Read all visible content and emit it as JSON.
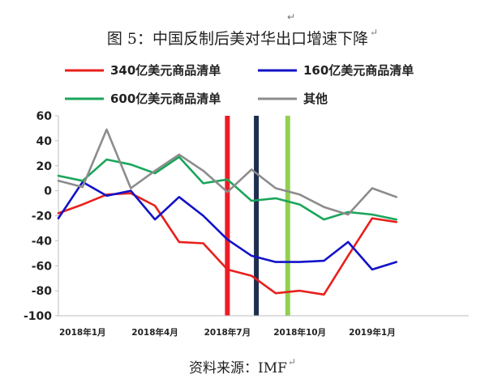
{
  "title": "图 5：中国反制后美对华出口增速下降",
  "title_mark": "↵",
  "top_mark": "↵",
  "source": "资料来源：IMF",
  "source_mark": "↵",
  "chart_data": {
    "type": "line",
    "ylim": [
      -100,
      60
    ],
    "yticks": [
      60,
      40,
      20,
      0,
      -20,
      -40,
      -60,
      -80,
      -100
    ],
    "x_range": [
      0,
      17
    ],
    "x_tick_labels": [
      {
        "label": "2018年1月",
        "x": 1
      },
      {
        "label": "2018年4月",
        "x": 4
      },
      {
        "label": "2018年7月",
        "x": 7
      },
      {
        "label": "2018年10月",
        "x": 10
      },
      {
        "label": "2019年1月",
        "x": 13
      }
    ],
    "grid": false,
    "legend_position": "top",
    "vertical_markers": [
      {
        "x": 7,
        "color": "#ee1c25"
      },
      {
        "x": 8.2,
        "color": "#1f2d4f"
      },
      {
        "x": 9.5,
        "color": "#92d050"
      }
    ],
    "series": [
      {
        "name": "340亿美元商品清单",
        "color": "#e8201c",
        "x": [
          0,
          1,
          2,
          3,
          4,
          5,
          6,
          7,
          8,
          9,
          10,
          11,
          12,
          13,
          14,
          15
        ],
        "values": [
          -18,
          -11,
          -3,
          -2,
          -12,
          -41,
          -42,
          -63,
          -68,
          -82,
          -80,
          -83,
          -52,
          -22,
          -25,
          null
        ]
      },
      {
        "name": "160亿美元商品清单",
        "color": "#1212c8",
        "x": [
          0,
          1,
          2,
          3,
          4,
          5,
          6,
          7,
          8,
          9,
          10,
          11,
          12,
          13,
          14,
          15
        ],
        "values": [
          -22,
          7,
          -4,
          0,
          -23,
          -5,
          -20,
          -39,
          -52,
          -57,
          -57,
          -56,
          -41,
          -63,
          -57,
          null
        ]
      },
      {
        "name": "600亿美元商品清单",
        "color": "#1aa65a",
        "x": [
          0,
          1,
          2,
          3,
          4,
          5,
          6,
          7,
          8,
          9,
          10,
          11,
          12,
          13,
          14,
          15
        ],
        "values": [
          12,
          8,
          25,
          21,
          14,
          27,
          6,
          9,
          -8,
          -6,
          -11,
          -23,
          -17,
          -19,
          -23,
          null
        ]
      },
      {
        "name": "其他",
        "color": "#8c8c8c",
        "x": [
          0,
          1,
          2,
          3,
          4,
          5,
          6,
          7,
          8,
          9,
          10,
          11,
          12,
          13,
          14,
          15
        ],
        "values": [
          8,
          3,
          49,
          2,
          16,
          29,
          16,
          -1,
          17,
          2,
          -3,
          -13,
          -19,
          2,
          -5,
          null
        ]
      }
    ]
  }
}
